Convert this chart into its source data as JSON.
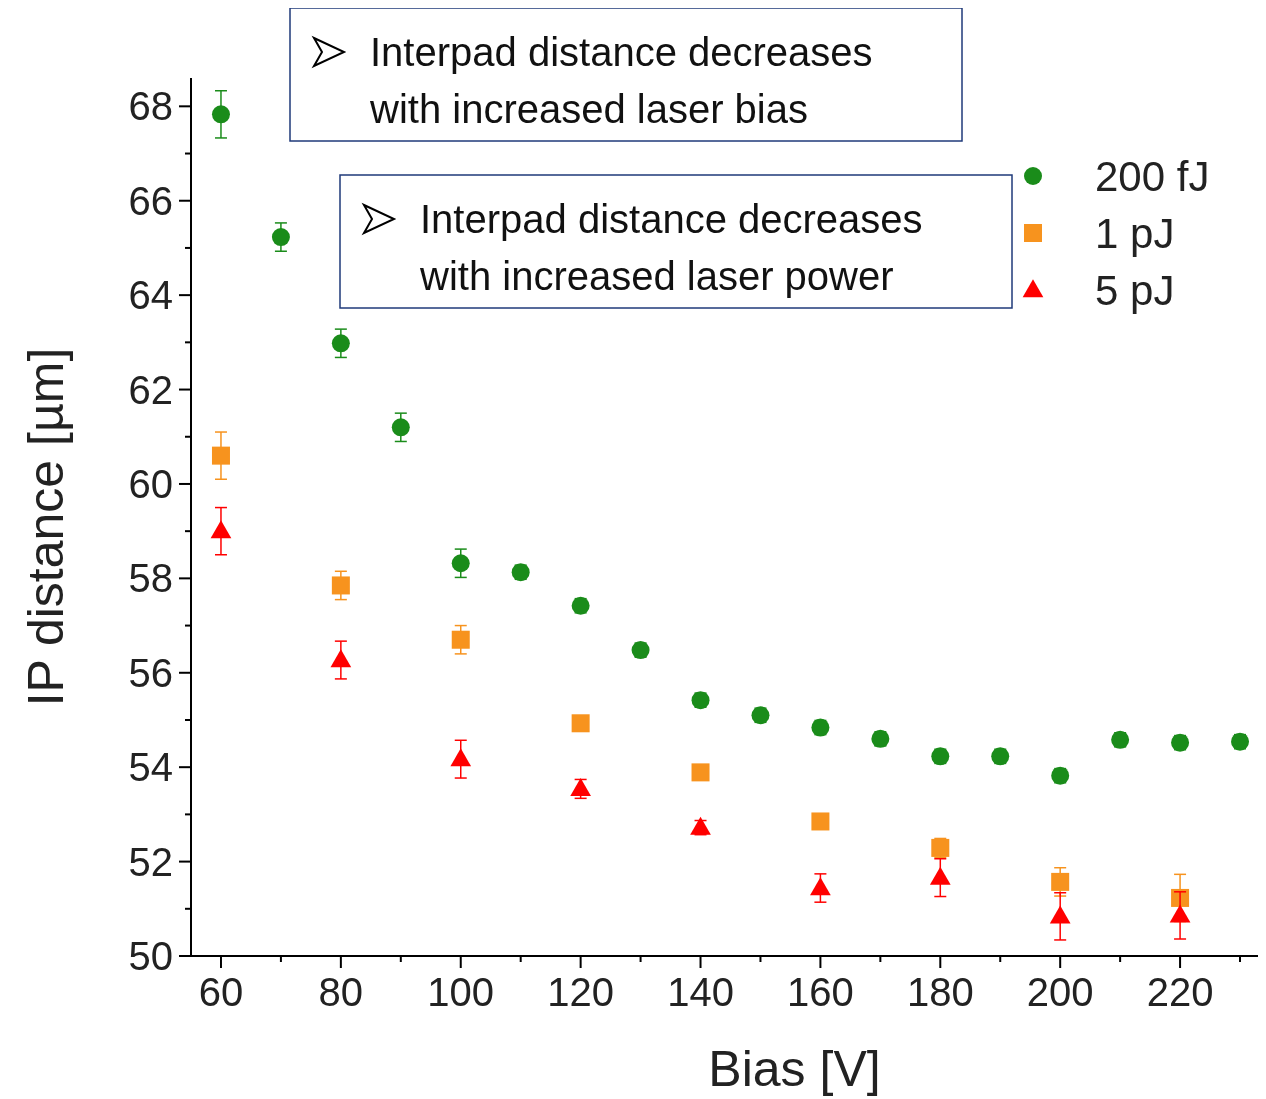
{
  "chart_data": {
    "type": "scatter",
    "xlabel": "Bias [V]",
    "ylabel": "IP distance [µm]",
    "xlim": [
      55,
      233
    ],
    "ylim": [
      50,
      68.6
    ],
    "xticks": [
      60,
      {
        "value": 70,
        "label": null
      },
      80,
      {
        "value": 90,
        "label": null
      },
      100,
      {
        "value": 110,
        "label": null
      },
      120,
      {
        "value": 130,
        "label": null
      },
      140,
      {
        "value": 150,
        "label": null
      },
      160,
      {
        "value": 170,
        "label": null
      },
      180,
      {
        "value": 190,
        "label": null
      },
      200,
      {
        "value": 210,
        "label": null
      },
      220,
      {
        "value": 230,
        "label": null
      }
    ],
    "yticks": [
      50,
      {
        "value": 51,
        "label": null
      },
      52,
      {
        "value": 53,
        "label": null
      },
      54,
      {
        "value": 55,
        "label": null
      },
      56,
      {
        "value": 57,
        "label": null
      },
      58,
      {
        "value": 59,
        "label": null
      },
      60,
      {
        "value": 61,
        "label": null
      },
      62,
      {
        "value": 63,
        "label": null
      },
      64,
      {
        "value": 65,
        "label": null
      },
      66,
      {
        "value": 67,
        "label": null
      },
      68
    ],
    "grid": false,
    "legend": "top right",
    "annotations": [
      "Interpad distance decreases with increased laser bias",
      "Interpad distance decreases with increased laser power"
    ],
    "series": [
      {
        "name": "200 fJ",
        "color": "#1a8c1a",
        "marker": "circle",
        "x": [
          60,
          70,
          80,
          90,
          100,
          110,
          120,
          130,
          140,
          150,
          160,
          170,
          180,
          190,
          200,
          210,
          220,
          230
        ],
        "values": [
          67.83,
          65.23,
          62.98,
          61.2,
          58.32,
          58.13,
          57.42,
          56.48,
          55.42,
          55.1,
          54.84,
          54.6,
          54.23,
          54.23,
          53.82,
          54.58,
          54.52,
          54.54
        ],
        "errors": [
          0.5,
          0.3,
          0.3,
          0.3,
          0.3,
          0.15,
          0.15,
          0.15,
          0.15,
          0.15,
          0.15,
          0.15,
          0.15,
          0.15,
          0.15,
          0.15,
          0.15,
          0.15
        ]
      },
      {
        "name": "1 pJ",
        "color": "#f7931e",
        "marker": "square",
        "x": [
          60,
          80,
          100,
          120,
          140,
          160,
          180,
          200,
          220
        ],
        "values": [
          60.6,
          57.85,
          56.7,
          54.93,
          53.89,
          52.85,
          52.29,
          51.57,
          51.23
        ],
        "errors": [
          0.5,
          0.3,
          0.3,
          0.1,
          0.1,
          0.1,
          0.2,
          0.3,
          0.5
        ]
      },
      {
        "name": "5 pJ",
        "color": "#ff0000",
        "marker": "triangle",
        "x": [
          60,
          80,
          100,
          120,
          140,
          160,
          180,
          200,
          220
        ],
        "values": [
          59.0,
          56.27,
          54.17,
          53.54,
          52.72,
          51.44,
          51.66,
          50.84,
          50.86
        ],
        "errors": [
          0.5,
          0.4,
          0.4,
          0.2,
          0.15,
          0.3,
          0.4,
          0.5,
          0.5
        ]
      }
    ]
  }
}
